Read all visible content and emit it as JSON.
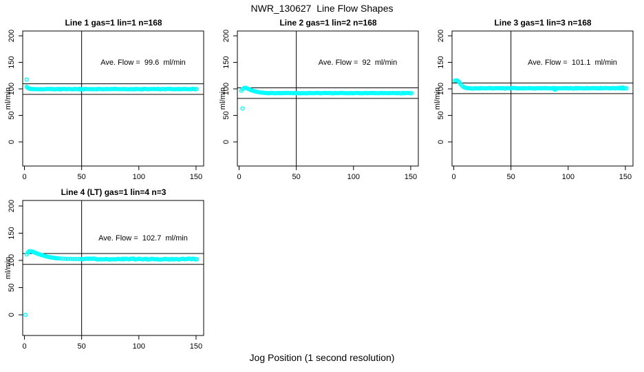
{
  "point_color": "#00FFFF",
  "figure": {
    "title": "NWR_130627  Line Flow Shapes",
    "xlabel": "Jog Position (1 second resolution)"
  },
  "chart_data": [
    {
      "type": "scatter",
      "title": "Line 1 gas=1 lin=1 n=168",
      "ave_label": "Ave. Flow =  99.6  ml/min",
      "ave_flow": 99.6,
      "ylabel": "ml/min",
      "xticks": [
        0,
        50,
        100,
        150
      ],
      "yticks": [
        0,
        50,
        100,
        150,
        200
      ],
      "xlim": [
        -2,
        158
      ],
      "ylim": [
        -45,
        210
      ],
      "grid": false,
      "vline": 50,
      "hlines": [
        109.6,
        89.6
      ],
      "outliers": [
        [
          2,
          117.5
        ]
      ],
      "points": [
        [
          2,
          104
        ],
        [
          2.8,
          102
        ],
        [
          3.5,
          101
        ],
        [
          4.2,
          100.4
        ],
        [
          5,
          100
        ],
        [
          6,
          99.8
        ],
        [
          7,
          99.7
        ],
        [
          8,
          99.6
        ],
        [
          31,
          98.9
        ],
        [
          49,
          98.7
        ],
        [
          103,
          98.8
        ]
      ],
      "steady": {
        "x0": 9,
        "x1": 151,
        "step": 1.2,
        "base": 99.55,
        "amp": 0.5
      }
    },
    {
      "type": "scatter",
      "title": "Line 2 gas=1 lin=2 n=168",
      "ave_label": "Ave. Flow =  92  ml/min",
      "ave_flow": 92,
      "ylabel": "ml/min",
      "xticks": [
        0,
        50,
        100,
        150
      ],
      "yticks": [
        0,
        50,
        100,
        150,
        200
      ],
      "xlim": [
        -2,
        158
      ],
      "ylim": [
        -45,
        210
      ],
      "grid": false,
      "vline": 50,
      "hlines": [
        102,
        82
      ],
      "outliers": [
        [
          3,
          63
        ]
      ],
      "points": [
        [
          2,
          96.5
        ],
        [
          3,
          99.5
        ],
        [
          4,
          101
        ],
        [
          5,
          102
        ],
        [
          6,
          101.8
        ],
        [
          7,
          101
        ],
        [
          8,
          100
        ],
        [
          9,
          99
        ],
        [
          10,
          98
        ],
        [
          11,
          97.2
        ],
        [
          12,
          96.5
        ],
        [
          13,
          95.8
        ],
        [
          14,
          95.2
        ],
        [
          15,
          94.7
        ],
        [
          16,
          94.2
        ],
        [
          17,
          93.8
        ],
        [
          18,
          93.4
        ],
        [
          19,
          93.1
        ],
        [
          20,
          92.9
        ],
        [
          21,
          92.7
        ],
        [
          22,
          92.5
        ],
        [
          23,
          92.3
        ],
        [
          24,
          92.2
        ],
        [
          25,
          92.1
        ]
      ],
      "steady": {
        "x0": 26,
        "x1": 151,
        "step": 1.2,
        "base": 92,
        "amp": 0.45
      }
    },
    {
      "type": "scatter",
      "title": "Line 3 gas=1 lin=3 n=168",
      "ave_label": "Ave. Flow =  101.1  ml/min",
      "ave_flow": 101.1,
      "ylabel": "ml/min",
      "xticks": [
        0,
        50,
        100,
        150
      ],
      "yticks": [
        0,
        50,
        100,
        150,
        200
      ],
      "xlim": [
        -2,
        158
      ],
      "ylim": [
        -45,
        210
      ],
      "grid": false,
      "vline": 50,
      "hlines": [
        111.1,
        91.1
      ],
      "outliers": [],
      "points": [
        [
          1,
          115.5
        ],
        [
          2,
          116
        ],
        [
          3,
          115.8
        ],
        [
          4,
          114.5
        ],
        [
          5,
          112
        ],
        [
          6,
          109
        ],
        [
          7,
          106.5
        ],
        [
          8,
          104.5
        ],
        [
          9,
          103
        ],
        [
          10,
          102.2
        ],
        [
          11,
          101.7
        ],
        [
          12,
          101.4
        ],
        [
          88,
          98.6
        ],
        [
          89,
          99
        ],
        [
          146,
          102.3
        ],
        [
          148,
          102.4
        ]
      ],
      "steady": {
        "x0": 13,
        "x1": 151,
        "step": 1.2,
        "base": 101.1,
        "amp": 0.55
      }
    },
    {
      "type": "scatter",
      "title": "Line 4 (LT) gas=1 lin=4 n=3",
      "ave_label": "Ave. Flow =  102.7  ml/min",
      "ave_flow": 102.7,
      "ylabel": "ml/min",
      "xticks": [
        0,
        50,
        100,
        150
      ],
      "yticks": [
        0,
        50,
        100,
        150,
        200
      ],
      "xlim": [
        -2,
        158
      ],
      "ylim": [
        -45,
        210
      ],
      "grid": false,
      "vline": 50,
      "hlines": [
        112.7,
        92.7
      ],
      "outliers": [
        [
          1,
          0
        ]
      ],
      "points": [
        [
          2,
          111
        ],
        [
          3,
          114.5
        ],
        [
          4,
          116.5
        ],
        [
          5,
          117
        ],
        [
          6,
          116.8
        ],
        [
          7,
          116.2
        ],
        [
          8,
          115.4
        ],
        [
          9,
          114.5
        ],
        [
          10,
          113.6
        ],
        [
          11,
          112.8
        ],
        [
          12,
          112
        ],
        [
          13,
          111.2
        ],
        [
          14,
          110.5
        ],
        [
          15,
          109.8
        ],
        [
          16,
          109.2
        ],
        [
          17,
          108.6
        ],
        [
          18,
          108
        ],
        [
          19,
          107.4
        ],
        [
          20,
          106.9
        ],
        [
          21,
          106.4
        ],
        [
          22,
          106
        ],
        [
          23,
          105.6
        ],
        [
          24,
          105.2
        ],
        [
          25,
          104.9
        ],
        [
          26,
          104.6
        ],
        [
          27,
          104.3
        ],
        [
          28,
          104.1
        ],
        [
          29,
          103.9
        ],
        [
          30,
          103.7
        ],
        [
          32,
          103.4
        ],
        [
          34,
          103.1
        ],
        [
          36,
          102.9
        ],
        [
          38,
          102.8
        ],
        [
          40,
          102.7
        ],
        [
          42,
          102.6
        ],
        [
          44,
          102.5
        ],
        [
          46,
          102.45
        ],
        [
          48,
          102.4
        ]
      ],
      "steady": {
        "x0": 50,
        "x1": 151,
        "step": 1.2,
        "base": 102.4,
        "amp": 1.0
      }
    }
  ]
}
